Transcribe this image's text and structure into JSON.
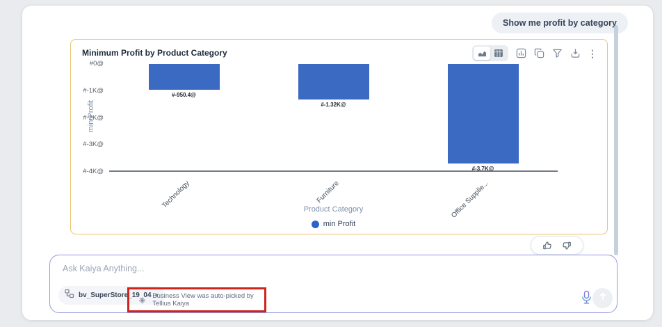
{
  "suggestion_chip": {
    "label": "Show me profit by category"
  },
  "chart_card": {
    "title": "Minimum Profit by Product Category",
    "toolbar": {
      "view_toggle": [
        {
          "name": "chart-view",
          "selected": true
        },
        {
          "name": "table-view",
          "selected": false
        }
      ],
      "actions": [
        "chart-settings",
        "copy",
        "filter",
        "export",
        "more-options"
      ]
    },
    "feedback": [
      "thumbs-up",
      "thumbs-down"
    ]
  },
  "chart_data": {
    "type": "bar",
    "title": "Minimum Profit by Product Category",
    "categories": [
      "Technology",
      "Furniture",
      "Office Supplie..."
    ],
    "series": [
      {
        "name": "min Profit",
        "values": [
          -950.4,
          -1320,
          -3700
        ]
      }
    ],
    "bar_labels": [
      "#-950.4@",
      "#-1.32K@",
      "#-3.7K@"
    ],
    "y_ticks": [
      "#0@",
      "#-1K@",
      "#-2K@",
      "#-3K@",
      "#-4K@"
    ],
    "ylim": [
      -4000,
      0
    ],
    "xlabel": "Product Category",
    "ylabel": "min Profit",
    "legend": [
      {
        "label": "min Profit",
        "color": "#2e62c9"
      }
    ],
    "legend_position": "bottom",
    "grid": false,
    "bar_color": "#3a6ac1",
    "x_tick_rotation": -45
  },
  "ask_bar": {
    "placeholder": "Ask Kaiya Anything...",
    "business_view_selector": {
      "icon": "business-view-icon",
      "label": "bv_SuperStore_19_04",
      "caret": "▾"
    },
    "auto_pick_notice": {
      "icon": "sparkle-diamond-icon",
      "glyph": "◈",
      "text": "Business View was auto-picked by Tellius Kaiya"
    },
    "mic_icon": "microphone-icon",
    "send_icon": "send-arrow-icon"
  },
  "annotation": {
    "type": "highlight-box",
    "color": "#ce241a"
  }
}
